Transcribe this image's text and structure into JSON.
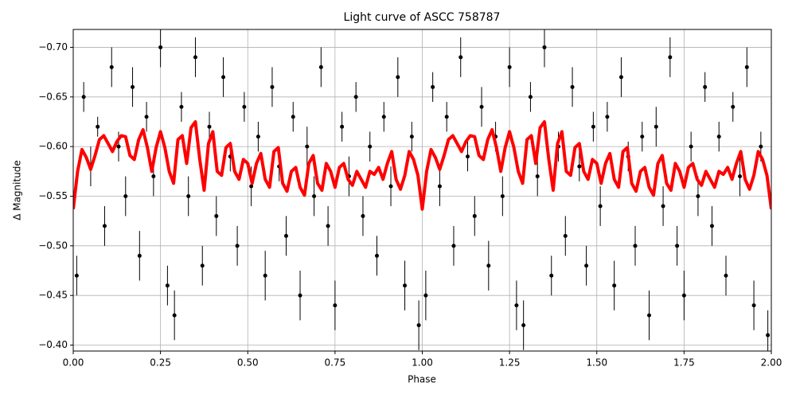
{
  "chart_data": {
    "type": "scatter",
    "title": "Light curve of ASCC 758787",
    "x_label": "Phase",
    "y_label": "Δ Magnitude",
    "xlim": [
      0,
      2
    ],
    "ylim": [
      -0.394,
      -0.718
    ],
    "grid": true,
    "xticks": [
      {
        "value": 0,
        "label": "0.00"
      },
      {
        "value": 0.25,
        "label": "0.25"
      },
      {
        "value": 0.5,
        "label": "0.50"
      },
      {
        "value": 0.75,
        "label": "0.75"
      },
      {
        "value": 1,
        "label": "1.00"
      },
      {
        "value": 1.25,
        "label": "1.25"
      },
      {
        "value": 1.5,
        "label": "1.50"
      },
      {
        "value": 1.75,
        "label": "1.75"
      },
      {
        "value": 2,
        "label": "2.00"
      }
    ],
    "yticks": [
      {
        "value": -0.7,
        "label": "−0.70"
      },
      {
        "value": -0.65,
        "label": "−0.65"
      },
      {
        "value": -0.6,
        "label": "−0.60"
      },
      {
        "value": -0.55,
        "label": "−0.55"
      },
      {
        "value": -0.5,
        "label": "−0.50"
      },
      {
        "value": -0.45,
        "label": "−0.45"
      },
      {
        "value": -0.4,
        "label": "−0.40"
      }
    ],
    "series": [
      {
        "type": "errorbar",
        "color": "#000000",
        "x": [
          0.01,
          0.03,
          0.05,
          0.07,
          0.09,
          0.11,
          0.13,
          0.15,
          0.17,
          0.19,
          0.21,
          0.23,
          0.25,
          0.27,
          0.29,
          0.31,
          0.33,
          0.35,
          0.37,
          0.39,
          0.41,
          0.43,
          0.45,
          0.47,
          0.49,
          0.51,
          0.53,
          0.55,
          0.57,
          0.59,
          0.61,
          0.63,
          0.65,
          0.67,
          0.69,
          0.71,
          0.73,
          0.75,
          0.77,
          0.79,
          0.81,
          0.83,
          0.85,
          0.87,
          0.89,
          0.91,
          0.93,
          0.95,
          0.97,
          0.99,
          1.01,
          1.03,
          1.05,
          1.07,
          1.09,
          1.11,
          1.13,
          1.15,
          1.17,
          1.19,
          1.21,
          1.23,
          1.25,
          1.27,
          1.29,
          1.31,
          1.33,
          1.35,
          1.37,
          1.39,
          1.41,
          1.43,
          1.45,
          1.47,
          1.49,
          1.51,
          1.53,
          1.55,
          1.57,
          1.59,
          1.61,
          1.63,
          1.65,
          1.67,
          1.69,
          1.71,
          1.73,
          1.75,
          1.77,
          1.79,
          1.81,
          1.83,
          1.85,
          1.87,
          1.89,
          1.91,
          1.93,
          1.95,
          1.97,
          1.99
        ],
        "values": [
          -0.47,
          -0.65,
          -0.58,
          -0.62,
          -0.52,
          -0.68,
          -0.6,
          -0.55,
          -0.66,
          -0.49,
          -0.63,
          -0.57,
          -0.7,
          -0.46,
          -0.43,
          -0.64,
          -0.55,
          -0.69,
          -0.48,
          -0.62,
          -0.53,
          -0.67,
          -0.59,
          -0.5,
          -0.64,
          -0.56,
          -0.61,
          -0.47,
          -0.66,
          -0.58,
          -0.51,
          -0.63,
          -0.45,
          -0.6,
          -0.55,
          -0.68,
          -0.52,
          -0.44,
          -0.62,
          -0.57,
          -0.65,
          -0.53,
          -0.6,
          -0.49,
          -0.63,
          -0.56,
          -0.67,
          -0.46,
          -0.61,
          -0.42,
          -0.45,
          -0.66,
          -0.56,
          -0.63,
          -0.5,
          -0.69,
          -0.59,
          -0.53,
          -0.64,
          -0.48,
          -0.61,
          -0.55,
          -0.68,
          -0.44,
          -0.42,
          -0.65,
          -0.57,
          -0.7,
          -0.47,
          -0.6,
          -0.51,
          -0.66,
          -0.58,
          -0.48,
          -0.62,
          -0.54,
          -0.63,
          -0.46,
          -0.67,
          -0.59,
          -0.5,
          -0.61,
          -0.43,
          -0.62,
          -0.54,
          -0.69,
          -0.5,
          -0.45,
          -0.6,
          -0.55,
          -0.66,
          -0.52,
          -0.61,
          -0.47,
          -0.64,
          -0.57,
          -0.68,
          -0.44,
          -0.6,
          -0.41
        ],
        "errors": [
          0.02,
          0.015,
          0.02,
          0.01,
          0.02,
          0.02,
          0.015,
          0.02,
          0.02,
          0.025,
          0.015,
          0.02,
          0.02,
          0.02,
          0.025,
          0.015,
          0.02,
          0.02,
          0.02,
          0.015,
          0.02,
          0.02,
          0.015,
          0.02,
          0.015,
          0.02,
          0.015,
          0.025,
          0.02,
          0.015,
          0.02,
          0.015,
          0.025,
          0.02,
          0.02,
          0.02,
          0.02,
          0.025,
          0.015,
          0.02,
          0.015,
          0.02,
          0.015,
          0.02,
          0.015,
          0.02,
          0.02,
          0.025,
          0.015,
          0.025,
          0.025,
          0.015,
          0.02,
          0.015,
          0.02,
          0.02,
          0.015,
          0.02,
          0.02,
          0.025,
          0.015,
          0.02,
          0.02,
          0.025,
          0.025,
          0.015,
          0.02,
          0.02,
          0.02,
          0.015,
          0.02,
          0.02,
          0.015,
          0.02,
          0.015,
          0.02,
          0.015,
          0.025,
          0.02,
          0.015,
          0.02,
          0.015,
          0.025,
          0.02,
          0.02,
          0.02,
          0.02,
          0.025,
          0.015,
          0.02,
          0.015,
          0.02,
          0.015,
          0.02,
          0.015,
          0.02,
          0.02,
          0.025,
          0.015,
          0.025
        ]
      },
      {
        "type": "line",
        "color": "#ff0000",
        "x": [
          0,
          0.0125,
          0.025,
          0.0375,
          0.05,
          0.0625,
          0.075,
          0.0875,
          0.1,
          0.1125,
          0.125,
          0.1375,
          0.15,
          0.1625,
          0.175,
          0.1875,
          0.2,
          0.2125,
          0.225,
          0.2375,
          0.25,
          0.2625,
          0.275,
          0.2875,
          0.3,
          0.3125,
          0.325,
          0.3375,
          0.35,
          0.3625,
          0.375,
          0.3875,
          0.4,
          0.4125,
          0.425,
          0.4375,
          0.45,
          0.4625,
          0.475,
          0.4875,
          0.5,
          0.5125,
          0.525,
          0.5375,
          0.55,
          0.5625,
          0.575,
          0.5875,
          0.6,
          0.6125,
          0.625,
          0.6375,
          0.65,
          0.6625,
          0.675,
          0.6875,
          0.7,
          0.7125,
          0.725,
          0.7375,
          0.75,
          0.7625,
          0.775,
          0.7875,
          0.8,
          0.8125,
          0.825,
          0.8375,
          0.85,
          0.8625,
          0.875,
          0.8875,
          0.9,
          0.9125,
          0.925,
          0.9375,
          0.95,
          0.9625,
          0.975,
          0.9875,
          1,
          1.0125,
          1.025,
          1.0375,
          1.05,
          1.0625,
          1.075,
          1.0875,
          1.1,
          1.1125,
          1.125,
          1.1375,
          1.15,
          1.1625,
          1.175,
          1.1875,
          1.2,
          1.2125,
          1.225,
          1.2375,
          1.25,
          1.2625,
          1.275,
          1.2875,
          1.3,
          1.3125,
          1.325,
          1.3375,
          1.35,
          1.3625,
          1.375,
          1.3875,
          1.4,
          1.4125,
          1.425,
          1.4375,
          1.45,
          1.4625,
          1.475,
          1.4875,
          1.5,
          1.5125,
          1.525,
          1.5375,
          1.55,
          1.5625,
          1.575,
          1.5875,
          1.6,
          1.6125,
          1.625,
          1.6375,
          1.65,
          1.6625,
          1.675,
          1.6875,
          1.7,
          1.7125,
          1.725,
          1.7375,
          1.75,
          1.7625,
          1.775,
          1.7875,
          1.8,
          1.8125,
          1.825,
          1.8375,
          1.85,
          1.8625,
          1.875,
          1.8875,
          1.9,
          1.9125,
          1.925,
          1.9375,
          1.95,
          1.9625,
          1.975,
          1.9875,
          2
        ],
        "values": [
          -0.537,
          -0.575,
          -0.597,
          -0.589,
          -0.577,
          -0.591,
          -0.607,
          -0.611,
          -0.603,
          -0.595,
          -0.605,
          -0.611,
          -0.61,
          -0.591,
          -0.587,
          -0.607,
          -0.617,
          -0.599,
          -0.575,
          -0.599,
          -0.615,
          -0.599,
          -0.575,
          -0.563,
          -0.607,
          -0.611,
          -0.583,
          -0.619,
          -0.625,
          -0.587,
          -0.556,
          -0.603,
          -0.615,
          -0.575,
          -0.571,
          -0.599,
          -0.603,
          -0.575,
          -0.567,
          -0.587,
          -0.583,
          -0.563,
          -0.583,
          -0.593,
          -0.567,
          -0.559,
          -0.595,
          -0.599,
          -0.563,
          -0.555,
          -0.575,
          -0.579,
          -0.559,
          -0.551,
          -0.583,
          -0.591,
          -0.563,
          -0.556,
          -0.583,
          -0.575,
          -0.559,
          -0.579,
          -0.583,
          -0.567,
          -0.561,
          -0.575,
          -0.567,
          -0.559,
          -0.575,
          -0.572,
          -0.579,
          -0.567,
          -0.583,
          -0.595,
          -0.567,
          -0.557,
          -0.571,
          -0.595,
          -0.587,
          -0.571,
          -0.537,
          -0.575,
          -0.597,
          -0.589,
          -0.577,
          -0.591,
          -0.607,
          -0.611,
          -0.603,
          -0.595,
          -0.605,
          -0.611,
          -0.61,
          -0.591,
          -0.587,
          -0.607,
          -0.617,
          -0.599,
          -0.575,
          -0.599,
          -0.615,
          -0.599,
          -0.575,
          -0.563,
          -0.607,
          -0.611,
          -0.583,
          -0.619,
          -0.625,
          -0.587,
          -0.556,
          -0.603,
          -0.615,
          -0.575,
          -0.571,
          -0.599,
          -0.603,
          -0.575,
          -0.567,
          -0.587,
          -0.583,
          -0.563,
          -0.583,
          -0.593,
          -0.567,
          -0.559,
          -0.595,
          -0.599,
          -0.563,
          -0.555,
          -0.575,
          -0.579,
          -0.559,
          -0.551,
          -0.583,
          -0.591,
          -0.563,
          -0.556,
          -0.583,
          -0.575,
          -0.559,
          -0.579,
          -0.583,
          -0.567,
          -0.561,
          -0.575,
          -0.567,
          -0.559,
          -0.575,
          -0.572,
          -0.579,
          -0.567,
          -0.583,
          -0.595,
          -0.567,
          -0.557,
          -0.571,
          -0.595,
          -0.587,
          -0.571,
          -0.537
        ]
      }
    ]
  }
}
